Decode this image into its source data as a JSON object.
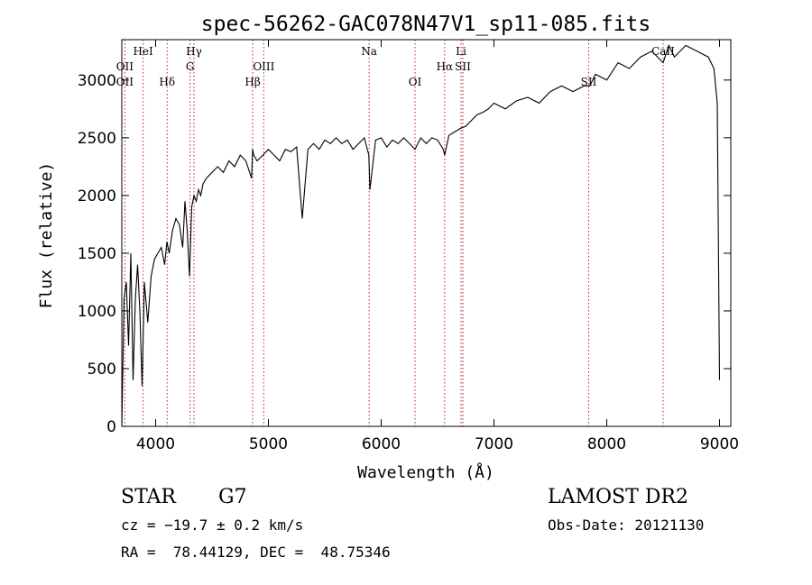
{
  "chart_data": {
    "type": "line",
    "title": "spec-56262-GAC078N47V1_sp11-085.fits",
    "xlabel": "Wavelength (Å)",
    "ylabel": "Flux (relative)",
    "xlim": [
      3700,
      9100
    ],
    "ylim": [
      0,
      3350
    ],
    "xticks": [
      4000,
      5000,
      6000,
      7000,
      8000,
      9000
    ],
    "yticks": [
      0,
      500,
      1000,
      1500,
      2000,
      2500,
      3000
    ],
    "grid": false,
    "series": [
      {
        "x": [
          3700,
          3720,
          3740,
          3760,
          3780,
          3800,
          3820,
          3840,
          3860,
          3880,
          3900,
          3930,
          3960,
          3990,
          4020,
          4050,
          4080,
          4100,
          4120,
          4150,
          4180,
          4210,
          4240,
          4260,
          4280,
          4300,
          4320,
          4340,
          4360,
          4380,
          4400,
          4420,
          4450,
          4500,
          4550,
          4600,
          4650,
          4700,
          4750,
          4800,
          4850,
          4860,
          4870,
          4900,
          4950,
          5000,
          5050,
          5100,
          5150,
          5200,
          5250,
          5300,
          5350,
          5400,
          5450,
          5500,
          5550,
          5600,
          5650,
          5700,
          5750,
          5800,
          5850,
          5890,
          5900,
          5950,
          6000,
          6050,
          6100,
          6150,
          6200,
          6250,
          6300,
          6350,
          6400,
          6450,
          6500,
          6550,
          6563,
          6600,
          6650,
          6700,
          6750,
          6800,
          6850,
          6900,
          6950,
          7000,
          7100,
          7200,
          7300,
          7400,
          7500,
          7600,
          7700,
          7800,
          7850,
          7900,
          8000,
          8100,
          8200,
          8300,
          8400,
          8500,
          8550,
          8600,
          8700,
          8800,
          8900,
          8950,
          8980,
          9000
        ],
        "y": [
          0,
          1100,
          1250,
          700,
          1500,
          400,
          1100,
          1400,
          1000,
          350,
          1250,
          900,
          1300,
          1450,
          1500,
          1550,
          1400,
          1600,
          1500,
          1700,
          1800,
          1750,
          1550,
          1950,
          1700,
          1300,
          1900,
          2000,
          1950,
          2050,
          2000,
          2100,
          2150,
          2200,
          2250,
          2200,
          2300,
          2250,
          2350,
          2300,
          2150,
          2400,
          2350,
          2300,
          2350,
          2400,
          2350,
          2300,
          2400,
          2380,
          2420,
          1800,
          2400,
          2450,
          2400,
          2480,
          2450,
          2500,
          2450,
          2480,
          2400,
          2450,
          2500,
          2350,
          2050,
          2480,
          2500,
          2420,
          2480,
          2450,
          2500,
          2450,
          2400,
          2500,
          2450,
          2500,
          2480,
          2400,
          2350,
          2520,
          2550,
          2580,
          2600,
          2650,
          2700,
          2720,
          2750,
          2800,
          2750,
          2820,
          2850,
          2800,
          2900,
          2950,
          2900,
          2950,
          2950,
          3050,
          3000,
          3150,
          3100,
          3200,
          3250,
          3150,
          3300,
          3200,
          3300,
          3250,
          3200,
          3100,
          2800,
          400
        ]
      }
    ],
    "annotations": {
      "lines": [
        {
          "label": "OII",
          "x": 3727,
          "row": 2
        },
        {
          "label": "OII",
          "x": 3727,
          "row": 3
        },
        {
          "label": "HeI",
          "x": 3889,
          "row": 1
        },
        {
          "label": "Hδ",
          "x": 4102,
          "row": 3
        },
        {
          "label": "Hγ",
          "x": 4340,
          "row": 1
        },
        {
          "label": "G",
          "x": 4305,
          "row": 2
        },
        {
          "label": "Hβ",
          "x": 4861,
          "row": 3
        },
        {
          "label": "OIII",
          "x": 4959,
          "row": 2
        },
        {
          "label": "Na",
          "x": 5893,
          "row": 1
        },
        {
          "label": "OI",
          "x": 6300,
          "row": 3
        },
        {
          "label": "Li",
          "x": 6708,
          "row": 1
        },
        {
          "label": "Hα",
          "x": 6563,
          "row": 2
        },
        {
          "label": "SII",
          "x": 6724,
          "row": 2
        },
        {
          "label": "SII",
          "x": 7840,
          "row": 3
        },
        {
          "label": "CaII",
          "x": 8500,
          "row": 1
        }
      ],
      "marker_x": [
        3727,
        3889,
        4102,
        4305,
        4340,
        4861,
        4959,
        5893,
        6300,
        6563,
        6708,
        6724,
        7840,
        8500
      ]
    }
  },
  "info": {
    "object_class": "STAR",
    "subclass": "G7",
    "survey": "LAMOST DR2",
    "cz": "cz = −19.7 ± 0.2 km/s",
    "obs_date": "Obs-Date: 20121130",
    "coords": "RA =  78.44129, DEC =  48.75346"
  }
}
